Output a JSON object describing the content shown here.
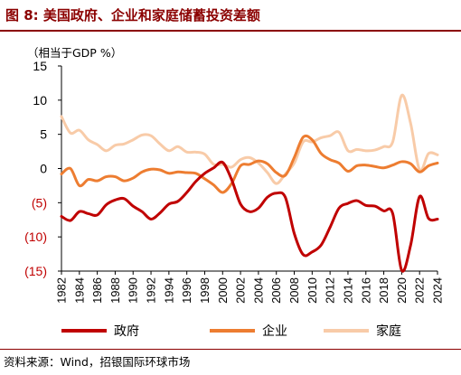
{
  "header": {
    "title": "图 8: 美国政府、企业和家庭储蓄投资差额",
    "unit": "（相当于GDP %）"
  },
  "footer": {
    "source": "资料来源：Wind，招银国际环球市场"
  },
  "chart_data": {
    "type": "line",
    "title": "",
    "xlabel": "",
    "ylabel": "（相当于GDP %）",
    "ylim": [
      -15,
      15
    ],
    "yticks": [
      "15",
      "10",
      "5",
      "0",
      "(5)",
      "(10)",
      "(15)"
    ],
    "ytick_values": [
      15,
      10,
      5,
      0,
      -5,
      -10,
      -15
    ],
    "negative_tick_color": "#c00000",
    "xticks": [
      "1982",
      "1984",
      "1986",
      "1988",
      "1990",
      "1992",
      "1994",
      "1996",
      "1998",
      "2000",
      "2002",
      "2004",
      "2006",
      "2008",
      "2010",
      "2012",
      "2014",
      "2016",
      "2018",
      "2020",
      "2022",
      "2024"
    ],
    "xlim": [
      1982,
      2024
    ],
    "grid": false,
    "legend_position": "bottom",
    "x": [
      1982,
      1983,
      1984,
      1985,
      1986,
      1987,
      1988,
      1989,
      1990,
      1991,
      1992,
      1993,
      1994,
      1995,
      1996,
      1997,
      1998,
      1999,
      2000,
      2001,
      2002,
      2003,
      2004,
      2005,
      2006,
      2007,
      2008,
      2009,
      2010,
      2011,
      2012,
      2013,
      2014,
      2015,
      2016,
      2017,
      2018,
      2019,
      2020,
      2021,
      2022,
      2023,
      2024
    ],
    "series": [
      {
        "name": "政府",
        "color": "#c00000",
        "values": [
          -7,
          -7.6,
          -6.3,
          -6.6,
          -6.8,
          -5.3,
          -4.6,
          -4.4,
          -5.5,
          -6.3,
          -7.4,
          -6.5,
          -5.2,
          -4.8,
          -3.5,
          -1.9,
          -0.7,
          0.1,
          0.9,
          -1.6,
          -5.2,
          -6.3,
          -5.8,
          -4.2,
          -3.6,
          -4.2,
          -9.5,
          -12.6,
          -12.2,
          -11.2,
          -8.6,
          -5.8,
          -5.1,
          -4.7,
          -5.4,
          -5.5,
          -6.2,
          -6.6,
          -14.9,
          -11.2,
          -4.1,
          -7.3,
          -7.4
        ]
      },
      {
        "name": "企业",
        "color": "#ed7d31",
        "values": [
          -0.8,
          0,
          -2.5,
          -1.6,
          -1.8,
          -1.2,
          -1.2,
          -1.8,
          -1.4,
          -0.5,
          -0.1,
          -0.2,
          -0.7,
          -0.5,
          -0.6,
          -0.7,
          -1.5,
          -2.4,
          -3.5,
          -2.2,
          0.4,
          0.6,
          1.1,
          0.7,
          -0.6,
          -1,
          1.6,
          4.6,
          4.2,
          2.2,
          1.3,
          0.8,
          -0.4,
          0.4,
          0.5,
          0.3,
          0.1,
          0.5,
          1,
          0.7,
          -0.5,
          0.4,
          0.8
        ]
      },
      {
        "name": "家庭",
        "color": "#f8cba8",
        "values": [
          7.6,
          5.2,
          5.6,
          4.2,
          3.5,
          2.6,
          3.4,
          3.6,
          4.2,
          4.9,
          4.8,
          3.6,
          2.6,
          3.2,
          2.4,
          2.4,
          2.1,
          0.6,
          0.6,
          0.2,
          1.3,
          1.6,
          0.8,
          -0.6,
          -2.2,
          -0.8,
          0.8,
          3.9,
          3.9,
          4.5,
          4.8,
          5.3,
          2.6,
          2.8,
          2.6,
          2.7,
          3.2,
          3.9,
          10.7,
          6.6,
          -0.2,
          2.2,
          2
        ]
      }
    ]
  }
}
